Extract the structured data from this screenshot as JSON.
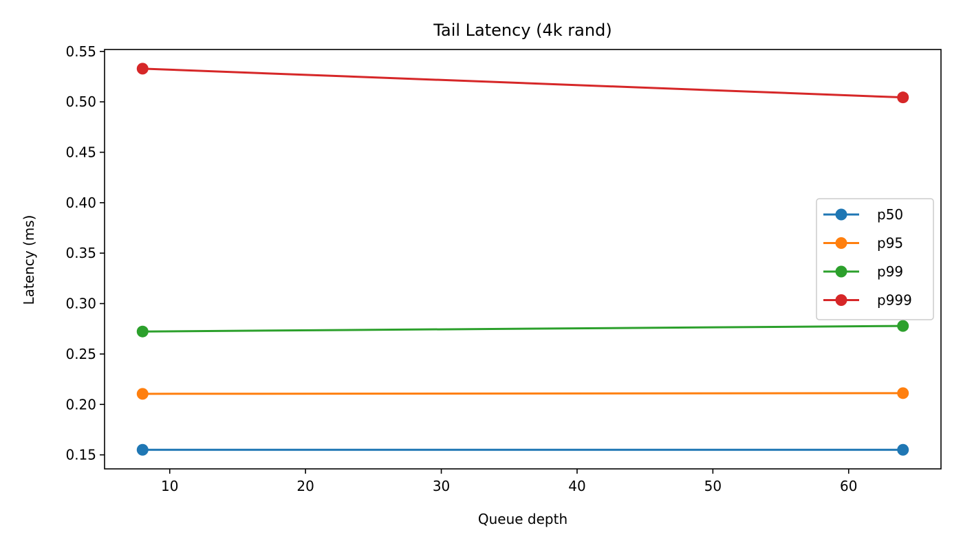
{
  "chart_data": {
    "type": "line",
    "title": "Tail Latency (4k rand)",
    "xlabel": "Queue depth",
    "ylabel": "Latency (ms)",
    "x": [
      8,
      64
    ],
    "xlim": [
      5.2,
      66.8
    ],
    "ylim": [
      0.1361,
      0.5519
    ],
    "xticks": [
      10,
      20,
      30,
      40,
      50,
      60
    ],
    "yticks": [
      0.15,
      0.2,
      0.25,
      0.3,
      0.35,
      0.4,
      0.45,
      0.5,
      0.55
    ],
    "grid": false,
    "legend_position": "center-right",
    "series": [
      {
        "name": "p50",
        "color": "#1f77b4",
        "values": [
          0.155,
          0.155
        ]
      },
      {
        "name": "p95",
        "color": "#ff7f0e",
        "values": [
          0.2105,
          0.2112
        ]
      },
      {
        "name": "p99",
        "color": "#2ca02c",
        "values": [
          0.2723,
          0.2778
        ]
      },
      {
        "name": "p999",
        "color": "#d62728",
        "values": [
          0.5329,
          0.5044
        ]
      }
    ]
  }
}
